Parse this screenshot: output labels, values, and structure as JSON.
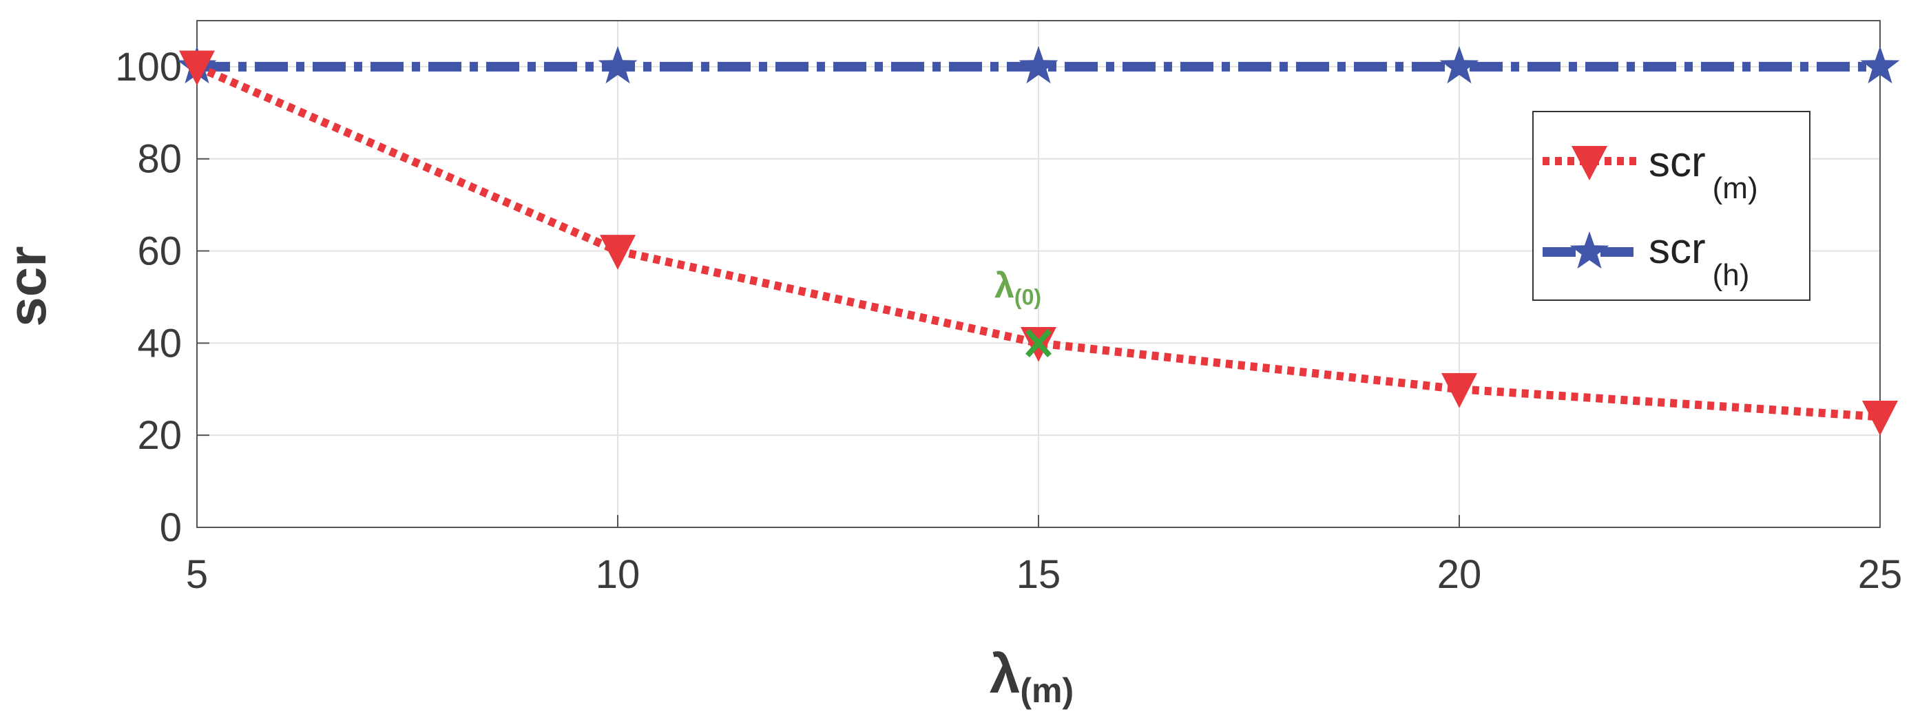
{
  "chart_data": {
    "type": "line",
    "title": "",
    "xlabel": "λ",
    "xlabel_sub": "(m)",
    "ylabel": "scr",
    "xlim": [
      5,
      25
    ],
    "ylim": [
      0,
      110
    ],
    "x_ticks": [
      "5",
      "10",
      "15",
      "20",
      "25"
    ],
    "y_ticks": [
      "0",
      "20",
      "40",
      "60",
      "80",
      "100"
    ],
    "x_tick_values": [
      5,
      10,
      15,
      20,
      25
    ],
    "y_tick_values": [
      0,
      20,
      40,
      60,
      80,
      100
    ],
    "grid": true,
    "legend_position": "top-right",
    "series": [
      {
        "name": "scr",
        "name_sub": "(m)",
        "color": "#e8383d",
        "marker": "triangle-down",
        "line_style": "dotted",
        "x": [
          5,
          10,
          15,
          20,
          25
        ],
        "y": [
          100,
          60,
          40,
          30,
          24
        ]
      },
      {
        "name": "scr",
        "name_sub": "(h)",
        "color": "#4156a8",
        "marker": "star",
        "line_style": "dash-dot",
        "x": [
          5,
          10,
          15,
          20,
          25
        ],
        "y": [
          100,
          100,
          100,
          100,
          100
        ]
      }
    ],
    "annotations": [
      {
        "text": "λ",
        "text_sub": "(0)",
        "x": 15,
        "y": 40,
        "marker": "x",
        "color": "#3aa33a",
        "text_color": "#6aa84f"
      }
    ]
  }
}
